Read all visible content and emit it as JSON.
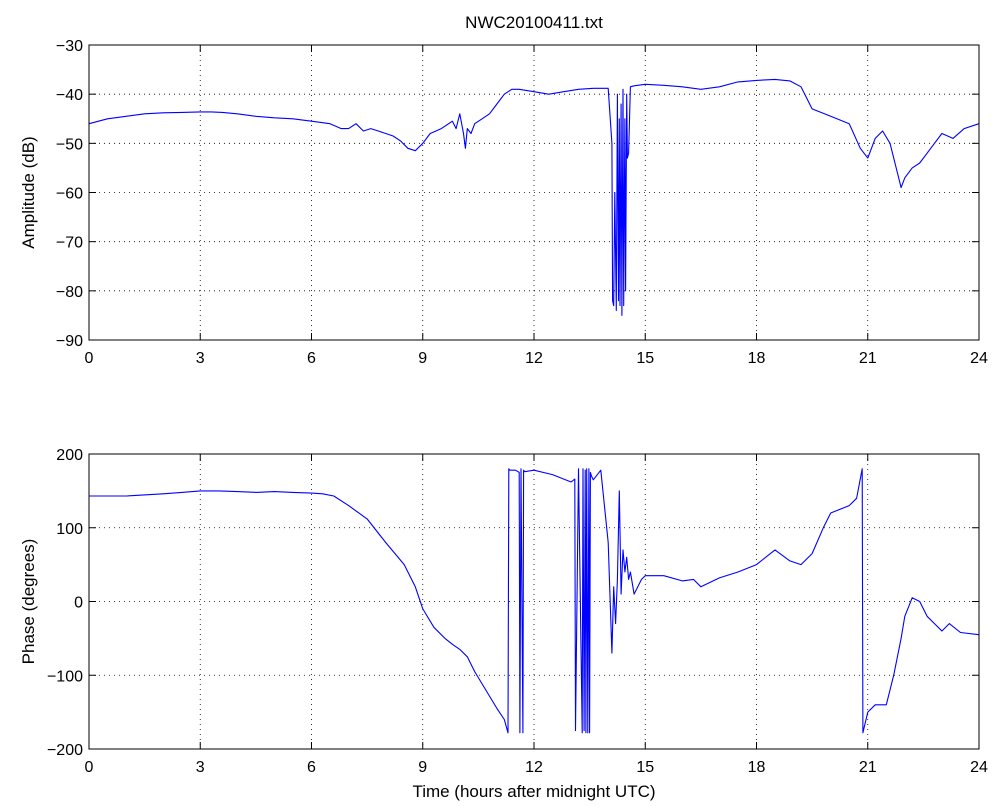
{
  "figure": {
    "title": "NWC20100411.txt",
    "line_color": "#0000ff"
  },
  "chart_data": [
    {
      "type": "line",
      "title": "NWC20100411.txt",
      "xlabel": "",
      "ylabel": "Amplitude (dB)",
      "xlim": [
        0,
        24
      ],
      "ylim": [
        -90,
        -30
      ],
      "xticks": [
        0,
        3,
        6,
        9,
        12,
        15,
        18,
        21,
        24
      ],
      "yticks": [
        -90,
        -80,
        -70,
        -60,
        -50,
        -40,
        -30
      ],
      "xtick_labels": [
        "0",
        "3",
        "6",
        "9",
        "12",
        "15",
        "18",
        "21",
        "24"
      ],
      "ytick_labels": [
        "−90",
        "−80",
        "−70",
        "−60",
        "−50",
        "−40",
        "−30"
      ],
      "grid": true,
      "series": [
        {
          "x": [
            0,
            0.5,
            1,
            1.5,
            2,
            2.5,
            3,
            3.3,
            3.6,
            4,
            4.5,
            5,
            5.5,
            6,
            6.5,
            6.8,
            7,
            7.2,
            7.4,
            7.6,
            7.8,
            8.0,
            8.2,
            8.4,
            8.6,
            8.8,
            9.0,
            9.2,
            9.5,
            9.8,
            9.9,
            10.0,
            10.1,
            10.15,
            10.2,
            10.3,
            10.4,
            10.6,
            10.8,
            11.0,
            11.2,
            11.4,
            11.6,
            12.0,
            12.4,
            12.8,
            13.2,
            13.6,
            14.0,
            14.1,
            14.12,
            14.15,
            14.18,
            14.22,
            14.25,
            14.28,
            14.3,
            14.32,
            14.35,
            14.37,
            14.4,
            14.42,
            14.45,
            14.47,
            14.5,
            14.52,
            14.55,
            14.6,
            14.7,
            15.0,
            15.5,
            16.0,
            16.5,
            17.0,
            17.5,
            18.0,
            18.5,
            18.9,
            19.2,
            19.5,
            20.0,
            20.5,
            20.8,
            21.0,
            21.2,
            21.4,
            21.6,
            21.8,
            21.9,
            22.0,
            22.2,
            22.4,
            22.6,
            22.8,
            23.0,
            23.3,
            23.6,
            24.0
          ],
          "y": [
            -46,
            -45,
            -44.5,
            -44,
            -43.8,
            -43.7,
            -43.6,
            -43.6,
            -43.7,
            -44,
            -44.5,
            -44.8,
            -45,
            -45.5,
            -46,
            -47,
            -47,
            -46,
            -47.5,
            -47,
            -47.5,
            -48,
            -48.5,
            -49.5,
            -51,
            -51.5,
            -50,
            -48,
            -47,
            -45.5,
            -47,
            -44,
            -48,
            -51,
            -47,
            -48,
            -46,
            -45,
            -44,
            -42,
            -40,
            -39,
            -39,
            -39.5,
            -40,
            -39.5,
            -39,
            -38.8,
            -38.8,
            -50,
            -82,
            -83,
            -60,
            -84,
            -40,
            -82,
            -45,
            -83,
            -42,
            -85,
            -39,
            -83,
            -45,
            -80,
            -40,
            -53,
            -52,
            -38.5,
            -38.3,
            -38,
            -38.2,
            -38.5,
            -39,
            -38.5,
            -37.5,
            -37.2,
            -37,
            -37.3,
            -38.5,
            -43,
            -44.5,
            -46,
            -51,
            -53,
            -49,
            -47.5,
            -50,
            -56,
            -59,
            -57,
            -55,
            -54,
            -52,
            -50,
            -48,
            -49,
            -47,
            -46
          ]
        }
      ]
    },
    {
      "type": "line",
      "title": "",
      "xlabel": "Time (hours after midnight UTC)",
      "ylabel": "Phase (degrees)",
      "xlim": [
        0,
        24
      ],
      "ylim": [
        -200,
        200
      ],
      "xticks": [
        0,
        3,
        6,
        9,
        12,
        15,
        18,
        21,
        24
      ],
      "yticks": [
        -200,
        -100,
        0,
        100,
        200
      ],
      "xtick_labels": [
        "0",
        "3",
        "6",
        "9",
        "12",
        "15",
        "18",
        "21",
        "24"
      ],
      "ytick_labels": [
        "−200",
        "−100",
        "0",
        "100",
        "200"
      ],
      "grid": true,
      "series": [
        {
          "x": [
            0,
            1,
            2,
            2.5,
            3,
            3.5,
            4,
            4.5,
            5,
            5.5,
            6,
            6.3,
            6.6,
            7.0,
            7.5,
            8.0,
            8.5,
            8.8,
            9.0,
            9.3,
            9.6,
            9.8,
            10.0,
            10.2,
            10.4,
            10.7,
            11.0,
            11.2,
            11.3,
            11.32,
            11.35,
            11.5,
            11.6,
            11.62,
            11.65,
            11.7,
            11.72,
            11.75,
            12.0,
            12.5,
            13.0,
            13.1,
            13.12,
            13.2,
            13.3,
            13.32,
            13.35,
            13.38,
            13.4,
            13.42,
            13.45,
            13.48,
            13.5,
            13.52,
            13.55,
            13.6,
            13.8,
            14.0,
            14.1,
            14.15,
            14.2,
            14.25,
            14.3,
            14.35,
            14.4,
            14.45,
            14.5,
            14.55,
            14.6,
            14.7,
            14.9,
            15.0,
            15.5,
            16.0,
            16.3,
            16.5,
            17.0,
            17.5,
            18.0,
            18.5,
            18.9,
            19.2,
            19.5,
            19.8,
            20.0,
            20.5,
            20.7,
            20.85,
            20.87,
            21.0,
            21.2,
            21.5,
            21.7,
            21.9,
            22.0,
            22.2,
            22.4,
            22.6,
            22.8,
            23.0,
            23.2,
            23.5,
            24.0
          ],
          "y": [
            143,
            143,
            146,
            148,
            150,
            150,
            149,
            148,
            149,
            148,
            147,
            146,
            143,
            130,
            112,
            80,
            50,
            20,
            -10,
            -35,
            -50,
            -58,
            -65,
            -75,
            -95,
            -120,
            -145,
            -160,
            -178,
            180,
            178,
            178,
            175,
            -178,
            180,
            -178,
            178,
            176,
            178,
            172,
            162,
            166,
            -175,
            180,
            -178,
            180,
            -175,
            178,
            -178,
            180,
            -178,
            180,
            -178,
            175,
            170,
            165,
            178,
            80,
            -70,
            20,
            -30,
            30,
            150,
            10,
            70,
            40,
            60,
            30,
            40,
            10,
            30,
            35,
            35,
            28,
            30,
            20,
            32,
            40,
            50,
            70,
            55,
            50,
            65,
            100,
            120,
            130,
            140,
            180,
            -178,
            -150,
            -140,
            -140,
            -100,
            -50,
            -20,
            5,
            0,
            -20,
            -30,
            -40,
            -30,
            -42,
            -45
          ]
        }
      ]
    }
  ]
}
